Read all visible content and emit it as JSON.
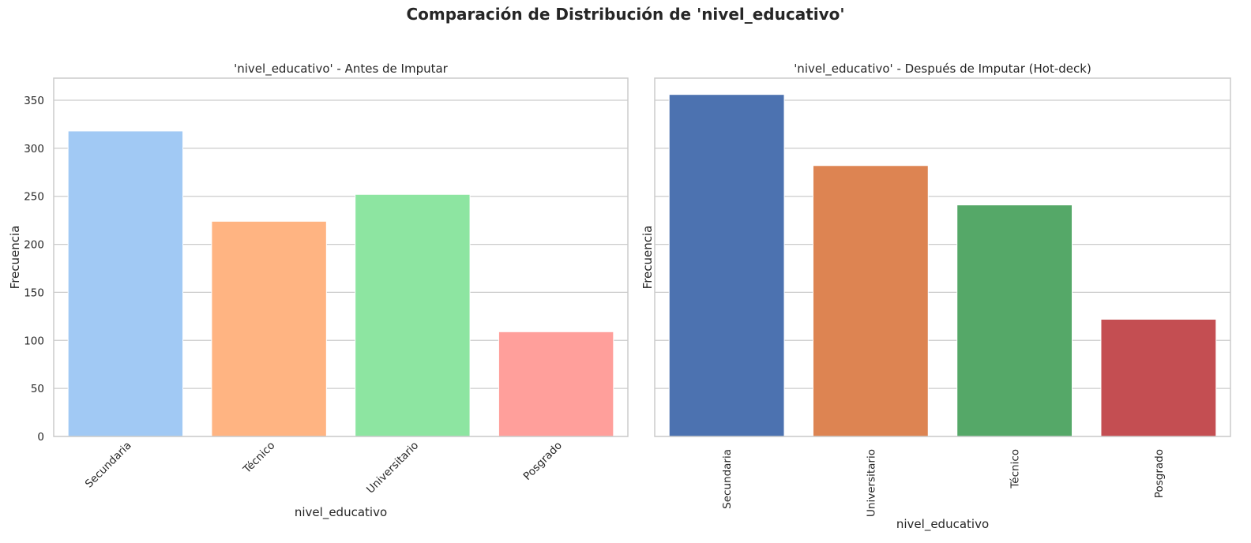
{
  "figure": {
    "suptitle": "Comparación de Distribución de 'nivel_educativo'"
  },
  "chart_data": [
    {
      "type": "bar",
      "title": "'nivel_educativo' - Antes de Imputar",
      "xlabel": "nivel_educativo",
      "ylabel": "Frecuencia",
      "categories": [
        "Secundaria",
        "Técnico",
        "Universitario",
        "Posgrado"
      ],
      "values": [
        318,
        224,
        252,
        109
      ],
      "colors": [
        "#a1c9f4",
        "#ffb482",
        "#8de5a1",
        "#ff9f9b"
      ],
      "ylim": [
        0,
        373
      ],
      "yticks": [
        0,
        50,
        100,
        150,
        200,
        250,
        300,
        350
      ],
      "grid": "y",
      "xtick_rotation": 45
    },
    {
      "type": "bar",
      "title": "'nivel_educativo' - Después de Imputar (Hot-deck)",
      "xlabel": "nivel_educativo",
      "ylabel": "Frecuencia",
      "categories": [
        "Secundaria",
        "Universitario",
        "Técnico",
        "Posgrado"
      ],
      "values": [
        356,
        282,
        241,
        122
      ],
      "colors": [
        "#4c72b0",
        "#dd8452",
        "#55a868",
        "#c44e52"
      ],
      "ylim": [
        0,
        373
      ],
      "yticks": [
        0,
        50,
        100,
        150,
        200,
        250,
        300,
        350
      ],
      "show_ytick_labels": false,
      "grid": "y",
      "xtick_rotation": 90
    }
  ]
}
